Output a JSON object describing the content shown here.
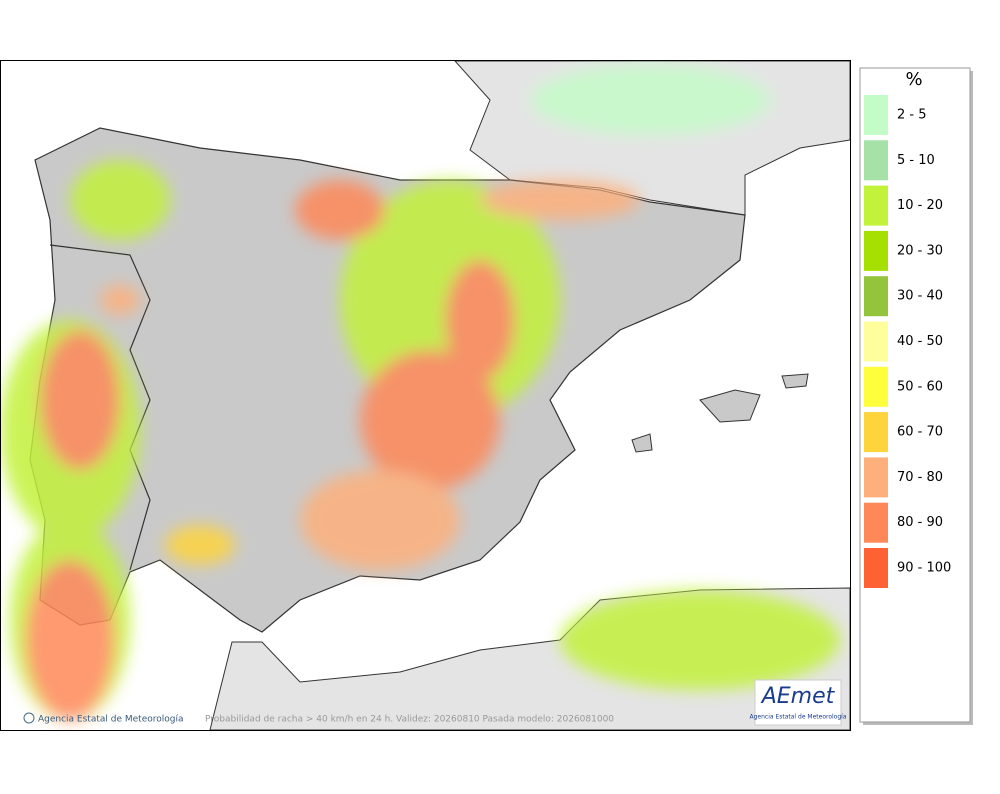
{
  "legend": {
    "title": "%",
    "items": [
      {
        "label": "2 - 5",
        "color": "#c4fcc8"
      },
      {
        "label": "5 - 10",
        "color": "#a6e2a8"
      },
      {
        "label": "10 - 20",
        "color": "#c2f23a"
      },
      {
        "label": "20 - 30",
        "color": "#a6e000"
      },
      {
        "label": "30 - 40",
        "color": "#94c43c"
      },
      {
        "label": "40 - 50",
        "color": "#fefe9c"
      },
      {
        "label": "50 - 60",
        "color": "#fefe3c"
      },
      {
        "label": "60 - 70",
        "color": "#fed43c"
      },
      {
        "label": "70 - 80",
        "color": "#feb07c"
      },
      {
        "label": "80 - 90",
        "color": "#fe8858"
      },
      {
        "label": "90 - 100",
        "color": "#fe6232"
      }
    ]
  },
  "footer": {
    "credit": "Agencia Estatal de Meteorología",
    "caption": "Probabilidad de racha > 40 km/h en 24 h. Validez: 20260810 Pasada modelo: 2026081000"
  },
  "logo": {
    "name": "AEmet",
    "subtitle": "Agencia Estatal de Meteorología"
  }
}
